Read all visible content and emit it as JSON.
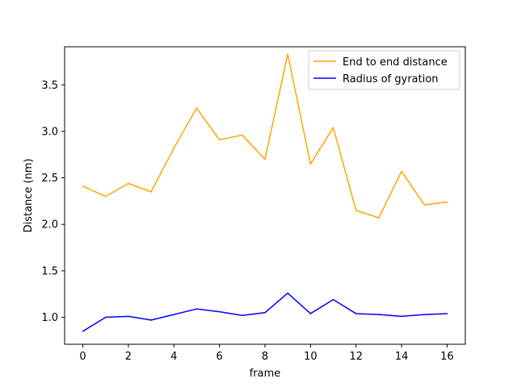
{
  "chart_data": {
    "type": "line",
    "title": "",
    "xlabel": "frame",
    "ylabel": "Distance (nm)",
    "x": [
      0,
      1,
      2,
      3,
      4,
      5,
      6,
      7,
      8,
      9,
      10,
      11,
      12,
      13,
      14,
      15,
      16
    ],
    "xlim": [
      -0.8,
      16.8
    ],
    "ylim": [
      0.71,
      3.91
    ],
    "xticks": [
      0,
      2,
      4,
      6,
      8,
      10,
      12,
      14,
      16
    ],
    "yticks": [
      1.0,
      1.5,
      2.0,
      2.5,
      3.0,
      3.5
    ],
    "ytick_labels": [
      "1.0",
      "1.5",
      "2.0",
      "2.5",
      "3.0",
      "3.5"
    ],
    "grid": false,
    "legend_position": "top-right",
    "series": [
      {
        "name": "End to end distance",
        "color": "#ffa500",
        "values": [
          2.41,
          2.3,
          2.44,
          2.35,
          2.82,
          3.25,
          2.91,
          2.96,
          2.7,
          3.83,
          2.65,
          3.04,
          2.15,
          2.07,
          2.57,
          2.21,
          2.24
        ]
      },
      {
        "name": "Radius of gyration",
        "color": "#0000ff",
        "values": [
          0.85,
          1.0,
          1.01,
          0.97,
          1.03,
          1.09,
          1.06,
          1.02,
          1.05,
          1.26,
          1.04,
          1.19,
          1.04,
          1.03,
          1.01,
          1.03,
          1.04
        ]
      }
    ]
  }
}
